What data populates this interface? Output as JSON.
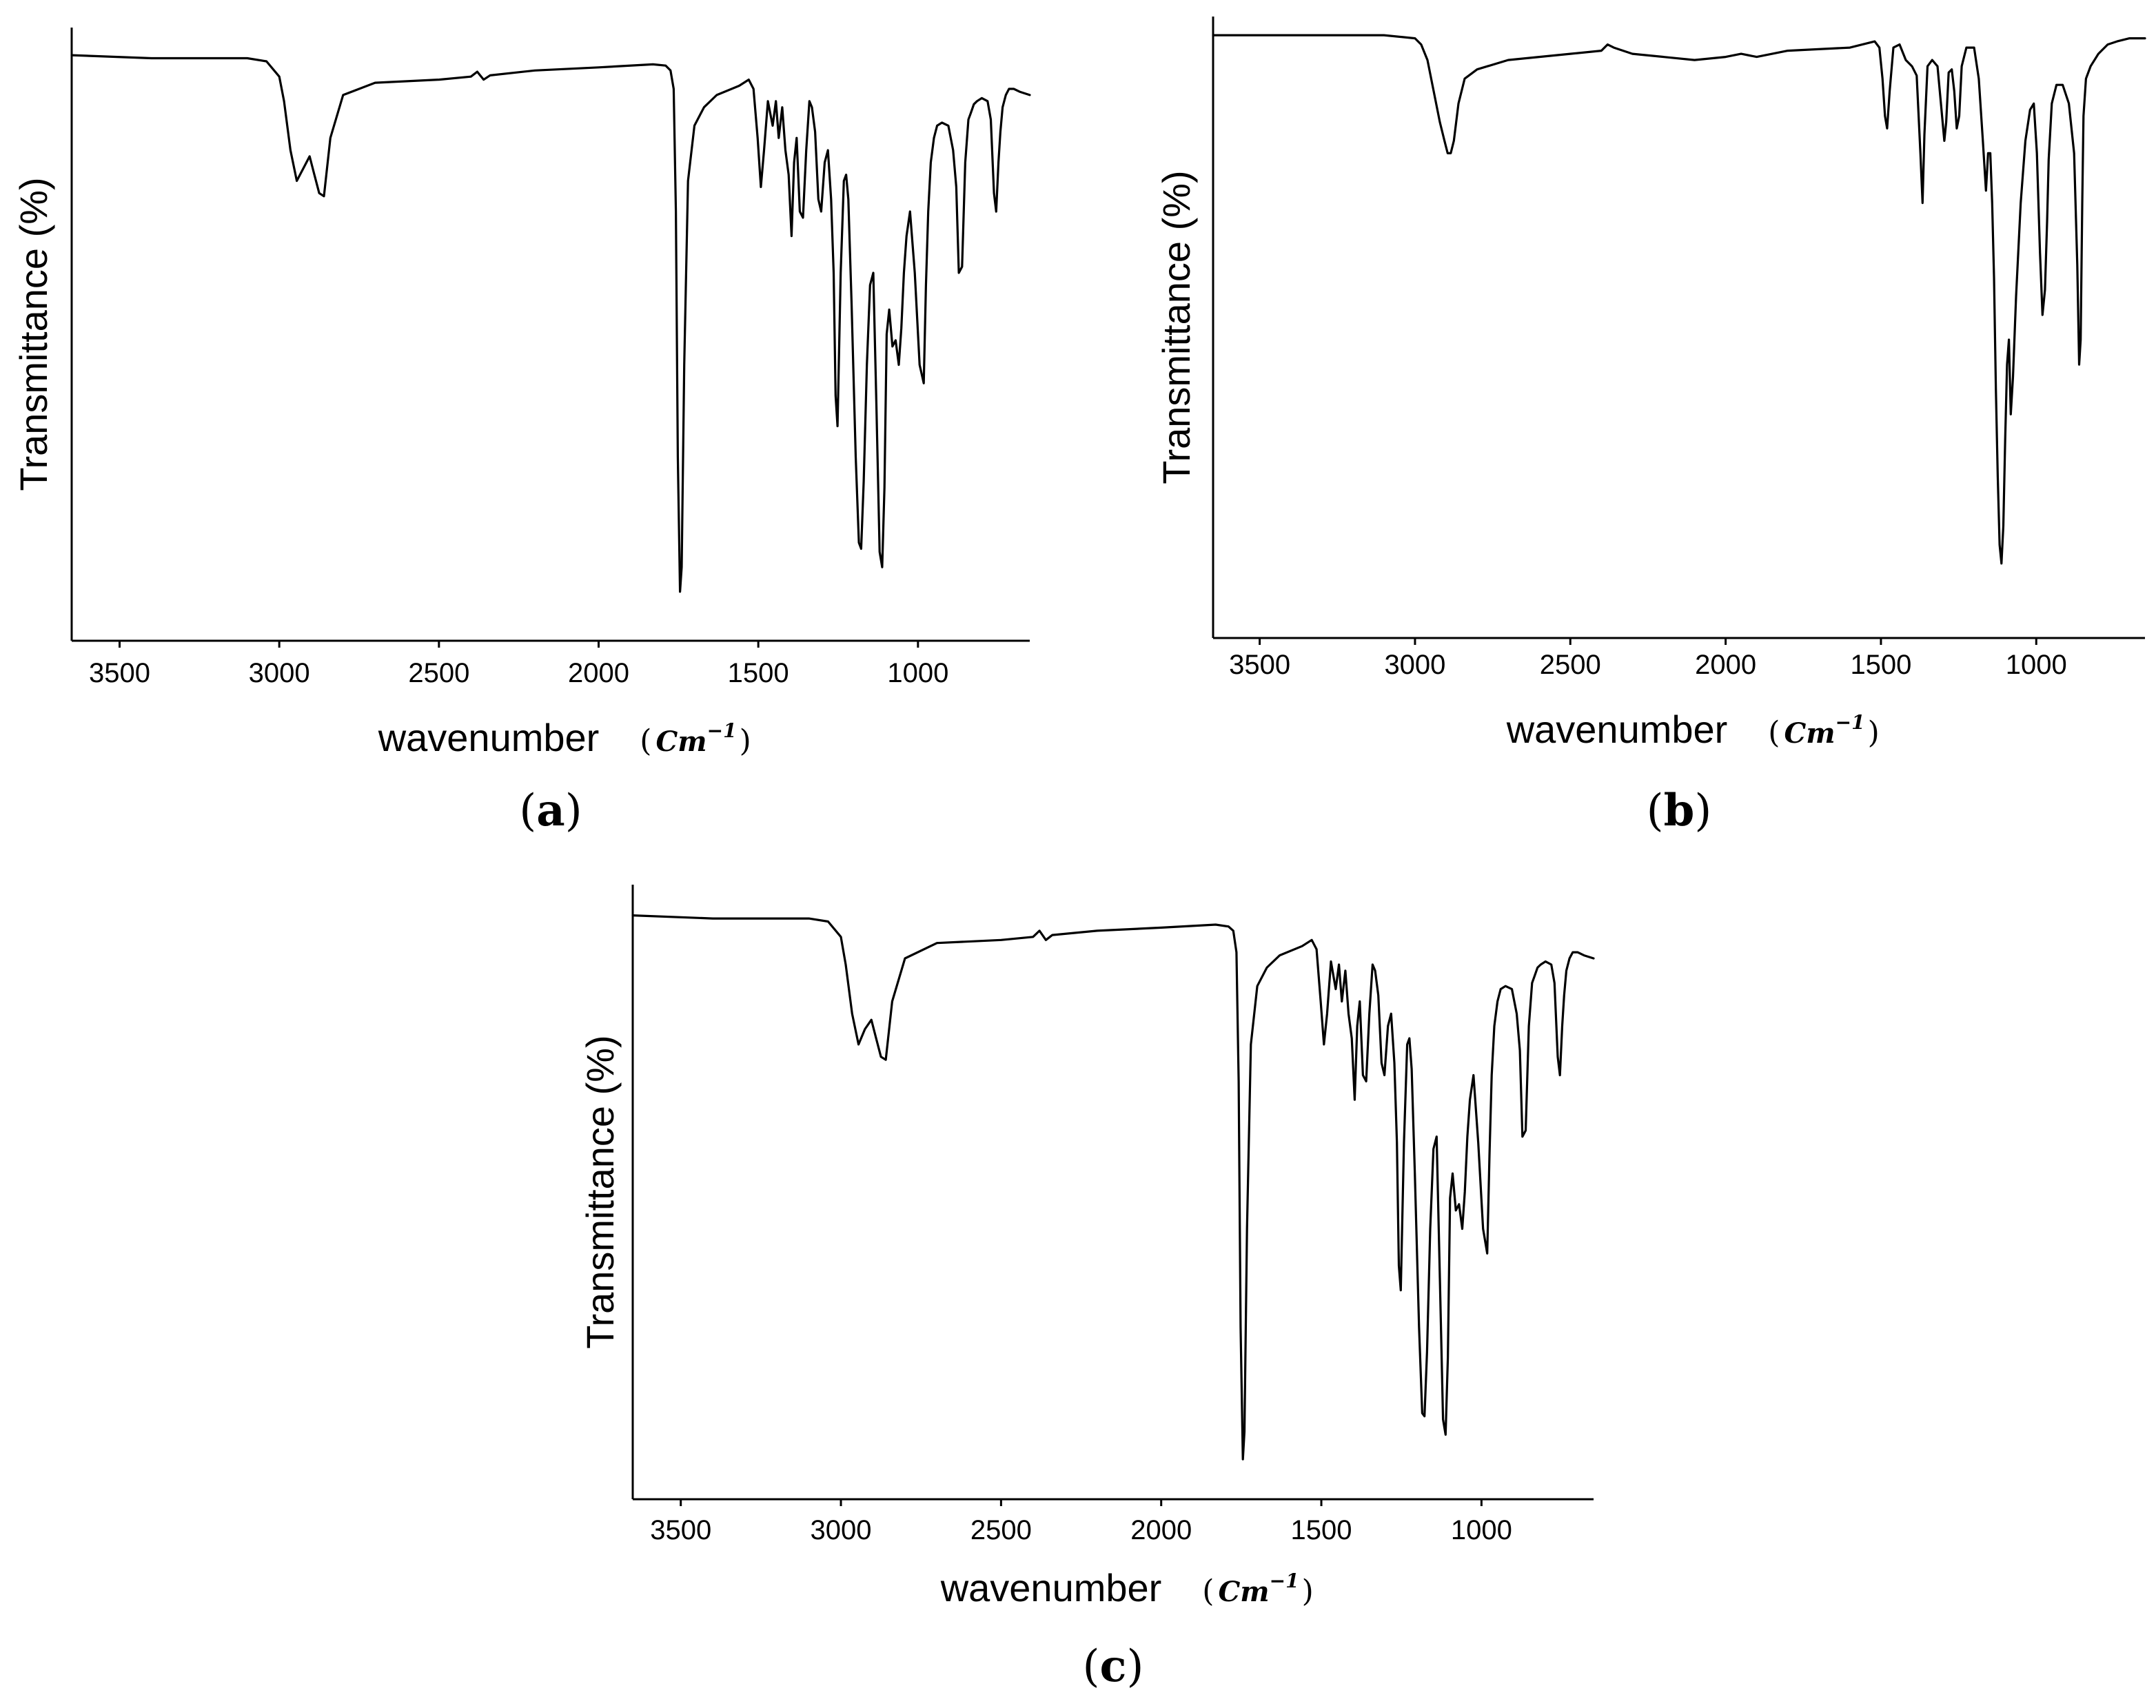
{
  "chart_data": [
    {
      "type": "line",
      "panel_label": "a",
      "xlabel": "wavenumber",
      "xlabel_unit": {
        "base": "Cm",
        "exponent": "−1"
      },
      "ylabel": "Transmittance (%)",
      "xlim": [
        3650,
        650
      ],
      "ylim": [
        0,
        100
      ],
      "x_reversed": true,
      "xticks": [
        3500,
        3000,
        2500,
        2000,
        1500,
        1000
      ],
      "grid": false,
      "legend": "none",
      "series": [
        {
          "x": [
            3650,
            3400,
            3100,
            3040,
            3000,
            2985,
            2965,
            2945,
            2925,
            2905,
            2890,
            2875,
            2860,
            2840,
            2800,
            2700,
            2500,
            2400,
            2380,
            2360,
            2340,
            2200,
            2000,
            1830,
            1790,
            1775,
            1765,
            1758,
            1752,
            1745,
            1740,
            1732,
            1720,
            1700,
            1670,
            1630,
            1560,
            1530,
            1515,
            1502,
            1492,
            1482,
            1470,
            1455,
            1445,
            1436,
            1425,
            1415,
            1405,
            1396,
            1388,
            1380,
            1370,
            1360,
            1350,
            1340,
            1332,
            1322,
            1312,
            1303,
            1292,
            1282,
            1272,
            1264,
            1258,
            1252,
            1242,
            1232,
            1225,
            1218,
            1208,
            1195,
            1185,
            1178,
            1170,
            1160,
            1150,
            1140,
            1130,
            1120,
            1112,
            1105,
            1098,
            1090,
            1080,
            1070,
            1060,
            1052,
            1044,
            1036,
            1025,
            1010,
            995,
            982,
            975,
            968,
            960,
            950,
            940,
            925,
            905,
            890,
            880,
            872,
            862,
            852,
            842,
            835,
            825,
            815,
            800,
            782,
            772,
            762,
            755,
            748,
            742,
            735,
            725,
            715,
            700,
            680,
            650
          ],
          "y": [
            95.5,
            95.0,
            95.0,
            94.5,
            92.0,
            88.0,
            80.0,
            75.0,
            77.0,
            79.0,
            76.0,
            73.0,
            72.5,
            82.0,
            89.0,
            91.0,
            91.5,
            92.0,
            92.8,
            91.5,
            92.2,
            93.0,
            93.5,
            94.0,
            93.8,
            93.0,
            90.0,
            70.0,
            30.0,
            8.0,
            12.0,
            45.0,
            75.0,
            84.0,
            87.0,
            89.0,
            90.5,
            91.5,
            90.0,
            82.0,
            74.0,
            80.0,
            88.0,
            84.0,
            88.0,
            82.0,
            87.0,
            80.0,
            76.0,
            66.0,
            78.0,
            82.0,
            70.0,
            69.0,
            80.0,
            88.0,
            87.0,
            83.0,
            72.0,
            70.0,
            78.0,
            80.0,
            72.0,
            60.0,
            40.0,
            35.0,
            60.0,
            75.0,
            76.0,
            72.0,
            55.0,
            30.0,
            16.0,
            15.0,
            26.0,
            45.0,
            58.0,
            60.0,
            38.0,
            14.5,
            12.0,
            25.0,
            50.0,
            54.0,
            48.0,
            49.0,
            45.0,
            51.0,
            60.0,
            66.0,
            70.0,
            60.0,
            45.0,
            42.0,
            58.0,
            70.0,
            78.0,
            82.0,
            84.0,
            84.5,
            84.0,
            80.0,
            74.0,
            60.0,
            61.0,
            78.0,
            85.0,
            86.0,
            87.5,
            88.0,
            88.5,
            88.0,
            85.0,
            73.0,
            70.0,
            78.0,
            83.0,
            87.0,
            89.0,
            90.0,
            90.0,
            89.5,
            89.0
          ]
        }
      ]
    },
    {
      "type": "line",
      "panel_label": "b",
      "xlabel": "wavenumber",
      "xlabel_unit": {
        "base": "Cm",
        "exponent": "−1"
      },
      "ylabel": "Transmittance (%)",
      "xlim": [
        3650,
        650
      ],
      "ylim": [
        0,
        100
      ],
      "x_reversed": true,
      "xticks": [
        3500,
        3000,
        2500,
        2000,
        1500,
        1000
      ],
      "grid": false,
      "legend": "none",
      "series": [
        {
          "x": [
            3650,
            3300,
            3100,
            3000,
            2980,
            2960,
            2940,
            2920,
            2905,
            2895,
            2885,
            2875,
            2860,
            2840,
            2800,
            2700,
            2600,
            2500,
            2400,
            2380,
            2360,
            2300,
            2100,
            2000,
            1950,
            1900,
            1800,
            1600,
            1520,
            1505,
            1495,
            1487,
            1480,
            1472,
            1460,
            1440,
            1420,
            1400,
            1385,
            1373,
            1366,
            1360,
            1350,
            1335,
            1318,
            1305,
            1296,
            1290,
            1282,
            1272,
            1264,
            1256,
            1248,
            1240,
            1225,
            1200,
            1185,
            1172,
            1162,
            1155,
            1148,
            1142,
            1136,
            1130,
            1124,
            1118,
            1112,
            1106,
            1100,
            1094,
            1088,
            1082,
            1075,
            1065,
            1050,
            1035,
            1020,
            1008,
            998,
            988,
            980,
            972,
            965,
            960,
            950,
            935,
            915,
            895,
            878,
            868,
            862,
            857,
            852,
            848,
            840,
            825,
            800,
            770,
            740,
            700,
            660,
            650
          ],
          "y": [
            97.0,
            97.0,
            97.0,
            96.5,
            95.5,
            93.0,
            88.0,
            83.0,
            80.0,
            78.0,
            78.0,
            80.0,
            86.0,
            90.0,
            91.5,
            93.0,
            93.5,
            94.0,
            94.5,
            95.5,
            95.0,
            94.0,
            93.0,
            93.5,
            94.0,
            93.5,
            94.5,
            95.0,
            96.0,
            95.0,
            90.0,
            84.0,
            82.0,
            88.0,
            95.0,
            95.5,
            93.0,
            92.0,
            90.5,
            78.0,
            70.0,
            81.0,
            92.0,
            93.0,
            92.0,
            85.0,
            80.0,
            83.0,
            91.0,
            91.5,
            88.0,
            82.0,
            84.0,
            92.0,
            95.0,
            95.0,
            90.0,
            80.0,
            72.0,
            78.0,
            78.0,
            70.0,
            58.0,
            40.0,
            26.0,
            15.0,
            12.0,
            18.0,
            32.0,
            44.0,
            48.0,
            36.0,
            42.0,
            55.0,
            70.0,
            80.0,
            85.0,
            86.0,
            78.0,
            62.0,
            52.0,
            56.0,
            67.0,
            77.0,
            86.0,
            89.0,
            89.0,
            86.0,
            78.0,
            60.0,
            44.0,
            48.0,
            70.0,
            84.0,
            90.0,
            92.0,
            94.0,
            95.5,
            96.0,
            96.5,
            96.5,
            96.5
          ]
        }
      ]
    },
    {
      "type": "line",
      "panel_label": "c",
      "xlabel": "wavenumber",
      "xlabel_unit": {
        "base": "Cm",
        "exponent": "−1"
      },
      "ylabel": "Transmittance (%)",
      "xlim": [
        3650,
        650
      ],
      "ylim": [
        0,
        100
      ],
      "x_reversed": true,
      "xticks": [
        3500,
        3000,
        2500,
        2000,
        1500,
        1000
      ],
      "grid": false,
      "legend": "none",
      "series": [
        {
          "x": [
            3650,
            3400,
            3100,
            3040,
            3000,
            2985,
            2965,
            2945,
            2925,
            2905,
            2890,
            2875,
            2860,
            2840,
            2800,
            2700,
            2500,
            2400,
            2380,
            2360,
            2340,
            2200,
            2000,
            1830,
            1790,
            1775,
            1765,
            1758,
            1752,
            1745,
            1740,
            1732,
            1720,
            1700,
            1670,
            1630,
            1560,
            1530,
            1515,
            1502,
            1492,
            1482,
            1470,
            1455,
            1445,
            1436,
            1425,
            1415,
            1405,
            1396,
            1388,
            1380,
            1370,
            1360,
            1350,
            1340,
            1332,
            1322,
            1312,
            1303,
            1292,
            1282,
            1272,
            1264,
            1258,
            1252,
            1242,
            1232,
            1225,
            1218,
            1208,
            1195,
            1185,
            1178,
            1170,
            1160,
            1150,
            1140,
            1130,
            1120,
            1112,
            1105,
            1098,
            1090,
            1080,
            1070,
            1060,
            1052,
            1044,
            1036,
            1025,
            1010,
            995,
            982,
            975,
            968,
            960,
            950,
            940,
            925,
            905,
            890,
            880,
            872,
            862,
            852,
            842,
            835,
            825,
            815,
            800,
            782,
            772,
            762,
            755,
            748,
            742,
            735,
            725,
            715,
            700,
            680,
            650
          ],
          "y": [
            95.0,
            94.5,
            94.5,
            94.0,
            91.5,
            87.0,
            79.0,
            74.0,
            76.5,
            78.0,
            75.0,
            72.0,
            71.5,
            81.0,
            88.0,
            90.5,
            91.0,
            91.5,
            92.5,
            91.0,
            91.8,
            92.5,
            93.0,
            93.5,
            93.2,
            92.5,
            89.0,
            68.0,
            28.0,
            6.5,
            11.0,
            44.0,
            74.0,
            83.5,
            86.5,
            88.5,
            90.0,
            91.0,
            89.5,
            81.0,
            74.0,
            79.0,
            87.5,
            83.0,
            87.0,
            81.0,
            86.0,
            79.0,
            75.0,
            65.0,
            77.0,
            81.0,
            69.0,
            68.0,
            79.0,
            87.0,
            86.0,
            82.0,
            71.0,
            69.0,
            77.0,
            79.0,
            71.0,
            58.0,
            38.0,
            34.0,
            58.0,
            74.0,
            75.0,
            70.0,
            53.0,
            28.0,
            14.0,
            13.5,
            24.0,
            44.0,
            57.0,
            59.0,
            36.0,
            13.0,
            10.5,
            23.0,
            49.0,
            53.0,
            47.0,
            48.0,
            44.0,
            50.0,
            59.0,
            65.0,
            69.0,
            58.0,
            44.0,
            40.0,
            56.0,
            69.0,
            77.0,
            81.0,
            83.0,
            83.5,
            83.0,
            79.0,
            73.0,
            59.0,
            60.0,
            77.0,
            84.0,
            85.0,
            86.5,
            87.0,
            87.5,
            87.0,
            84.0,
            72.0,
            69.0,
            77.0,
            82.0,
            86.0,
            88.0,
            89.0,
            89.0,
            88.5,
            88.0
          ]
        }
      ]
    }
  ]
}
